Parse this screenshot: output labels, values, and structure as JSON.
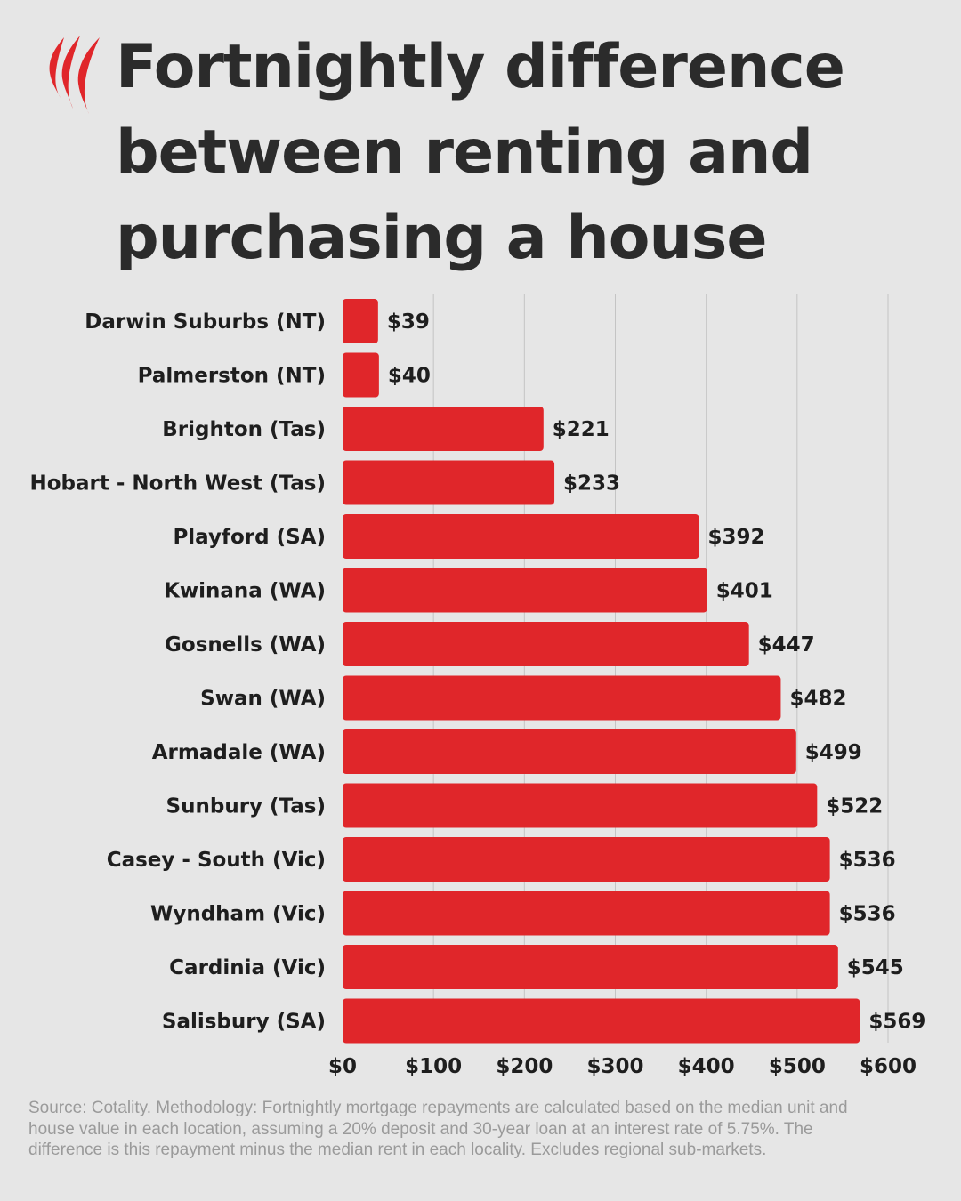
{
  "brand": {
    "logo_icon": "sbs-flame-icon",
    "logo_color": "#e0262a"
  },
  "title_lines": [
    "Fortnightly difference",
    "between renting and",
    "purchasing a house"
  ],
  "source": "Source: Cotality. Methodology: Fortnightly mortgage repayments are calculated based on the median unit and house value in each location, assuming a 20% deposit and 30-year loan at an interest rate of 5.75%. The difference is this repayment minus the median rent in each locality. Excludes regional sub-markets.",
  "colors": {
    "bar": "#e0262a",
    "background": "#e6e6e6",
    "text": "#2b2b2b",
    "source_text": "#9a9a9a",
    "grid": "#c4c4c4"
  },
  "chart_data": {
    "type": "bar",
    "orientation": "horizontal",
    "title": "Fortnightly difference between renting and purchasing a house",
    "categories": [
      "Darwin Suburbs (NT)",
      "Palmerston (NT)",
      "Brighton (Tas)",
      "Hobart - North West (Tas)",
      "Playford (SA)",
      "Kwinana (WA)",
      "Gosnells (WA)",
      "Swan (WA)",
      "Armadale (WA)",
      "Sunbury (Tas)",
      "Casey - South (Vic)",
      "Wyndham (Vic)",
      "Cardinia (Vic)",
      "Salisbury (SA)"
    ],
    "values": [
      39,
      40,
      221,
      233,
      392,
      401,
      447,
      482,
      499,
      522,
      536,
      536,
      545,
      569
    ],
    "value_labels": [
      "$39",
      "$40",
      "$221",
      "$233",
      "$392",
      "$401",
      "$447",
      "$482",
      "$499",
      "$522",
      "$536",
      "$536",
      "$545",
      "$569"
    ],
    "xlim": [
      0,
      600
    ],
    "x_ticks": [
      0,
      100,
      200,
      300,
      400,
      500,
      600
    ],
    "x_tick_labels": [
      "$0",
      "$100",
      "$200",
      "$300",
      "$400",
      "$500",
      "$600"
    ],
    "xlabel": "",
    "ylabel": "",
    "grid": true,
    "legend": "none"
  }
}
